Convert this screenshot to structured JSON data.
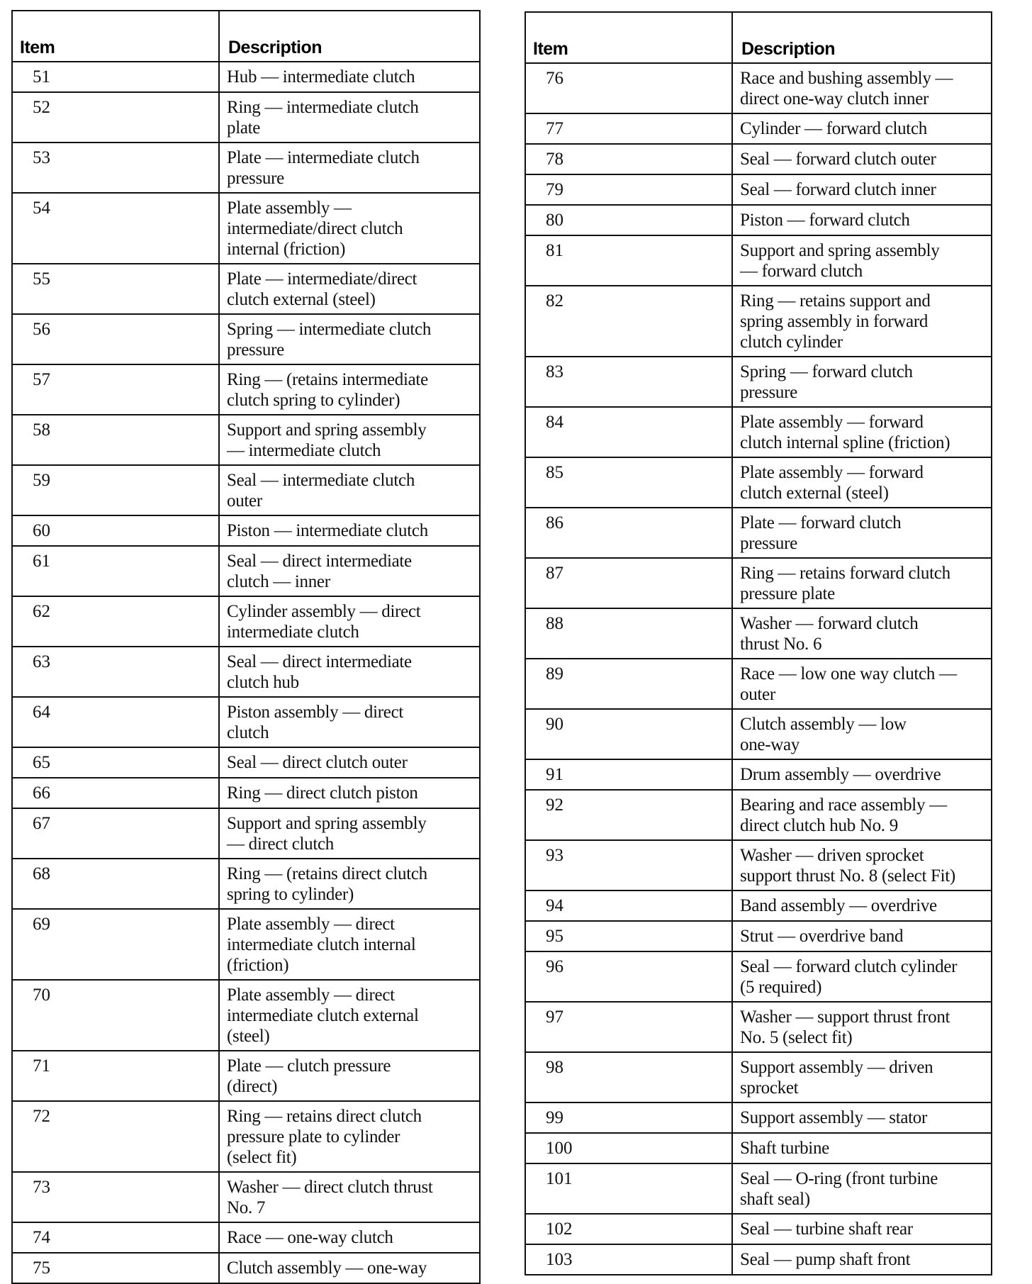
{
  "headers": {
    "item": "Item",
    "description": "Description"
  },
  "left_rows": [
    {
      "item": "51",
      "description": "Hub — intermediate clutch"
    },
    {
      "item": "52",
      "description": "Ring — intermediate clutch\nplate"
    },
    {
      "item": "53",
      "description": "Plate — intermediate clutch\npressure"
    },
    {
      "item": "54",
      "description": "Plate assembly —\nintermediate/direct clutch\ninternal (friction)"
    },
    {
      "item": "55",
      "description": "Plate — intermediate/direct\nclutch external (steel)"
    },
    {
      "item": "56",
      "description": "Spring — intermediate clutch\npressure"
    },
    {
      "item": "57",
      "description": "Ring — (retains intermediate\nclutch spring to cylinder)"
    },
    {
      "item": "58",
      "description": "Support and spring assembly\n— intermediate clutch"
    },
    {
      "item": "59",
      "description": "Seal — intermediate clutch\nouter"
    },
    {
      "item": "60",
      "description": "Piston — intermediate clutch"
    },
    {
      "item": "61",
      "description": "Seal — direct intermediate\nclutch — inner"
    },
    {
      "item": "62",
      "description": "Cylinder assembly — direct\nintermediate clutch"
    },
    {
      "item": "63",
      "description": "Seal — direct intermediate\nclutch hub"
    },
    {
      "item": "64",
      "description": "Piston assembly — direct\nclutch"
    },
    {
      "item": "65",
      "description": "Seal — direct clutch outer"
    },
    {
      "item": "66",
      "description": "Ring — direct clutch piston"
    },
    {
      "item": "67",
      "description": "Support and spring assembly\n— direct clutch"
    },
    {
      "item": "68",
      "description": "Ring — (retains direct clutch\nspring to cylinder)"
    },
    {
      "item": "69",
      "description": "Plate assembly — direct\nintermediate clutch internal\n(friction)"
    },
    {
      "item": "70",
      "description": "Plate assembly — direct\nintermediate clutch external\n(steel)"
    },
    {
      "item": "71",
      "description": "Plate — clutch pressure\n(direct)"
    },
    {
      "item": "72",
      "description": "Ring — retains direct clutch\npressure plate to cylinder\n(select fit)"
    },
    {
      "item": "73",
      "description": "Washer — direct clutch thrust\nNo. 7"
    },
    {
      "item": "74",
      "description": "Race — one-way clutch"
    },
    {
      "item": "75",
      "description": "Clutch assembly — one-way"
    }
  ],
  "right_rows": [
    {
      "item": "76",
      "description": "Race and bushing assembly —\ndirect one-way clutch inner"
    },
    {
      "item": "77",
      "description": "Cylinder — forward clutch"
    },
    {
      "item": "78",
      "description": "Seal — forward clutch outer"
    },
    {
      "item": "79",
      "description": "Seal — forward clutch inner"
    },
    {
      "item": "80",
      "description": "Piston — forward clutch"
    },
    {
      "item": "81",
      "description": "Support and spring assembly\n— forward clutch"
    },
    {
      "item": "82",
      "description": "Ring — retains support and\nspring assembly in forward\nclutch cylinder"
    },
    {
      "item": "83",
      "description": "Spring — forward clutch\npressure"
    },
    {
      "item": "84",
      "description": "Plate assembly — forward\nclutch internal spline (friction)"
    },
    {
      "item": "85",
      "description": "Plate assembly — forward\nclutch external (steel)"
    },
    {
      "item": "86",
      "description": "Plate — forward clutch\npressure"
    },
    {
      "item": "87",
      "description": "Ring — retains forward clutch\npressure plate"
    },
    {
      "item": "88",
      "description": "Washer — forward clutch\nthrust No. 6"
    },
    {
      "item": "89",
      "description": "Race — low one way clutch —\nouter"
    },
    {
      "item": "90",
      "description": "Clutch assembly — low\none-way"
    },
    {
      "item": "91",
      "description": "Drum assembly — overdrive"
    },
    {
      "item": "92",
      "description": "Bearing and race assembly —\ndirect clutch hub No. 9"
    },
    {
      "item": "93",
      "description": "Washer — driven sprocket\nsupport thrust No. 8 (select Fit)"
    },
    {
      "item": "94",
      "description": "Band assembly — overdrive"
    },
    {
      "item": "95",
      "description": "Strut — overdrive band"
    },
    {
      "item": "96",
      "description": "Seal — forward clutch cylinder\n(5 required)"
    },
    {
      "item": "97",
      "description": "Washer — support thrust front\nNo. 5 (select fit)"
    },
    {
      "item": "98",
      "description": "Support assembly — driven\nsprocket"
    },
    {
      "item": "99",
      "description": "Support assembly — stator"
    },
    {
      "item": "100",
      "description": "Shaft turbine"
    },
    {
      "item": "101",
      "description": "Seal — O-ring (front turbine\nshaft seal)"
    },
    {
      "item": "102",
      "description": "Seal — turbine shaft rear"
    },
    {
      "item": "103",
      "description": "Seal — pump shaft front"
    }
  ]
}
